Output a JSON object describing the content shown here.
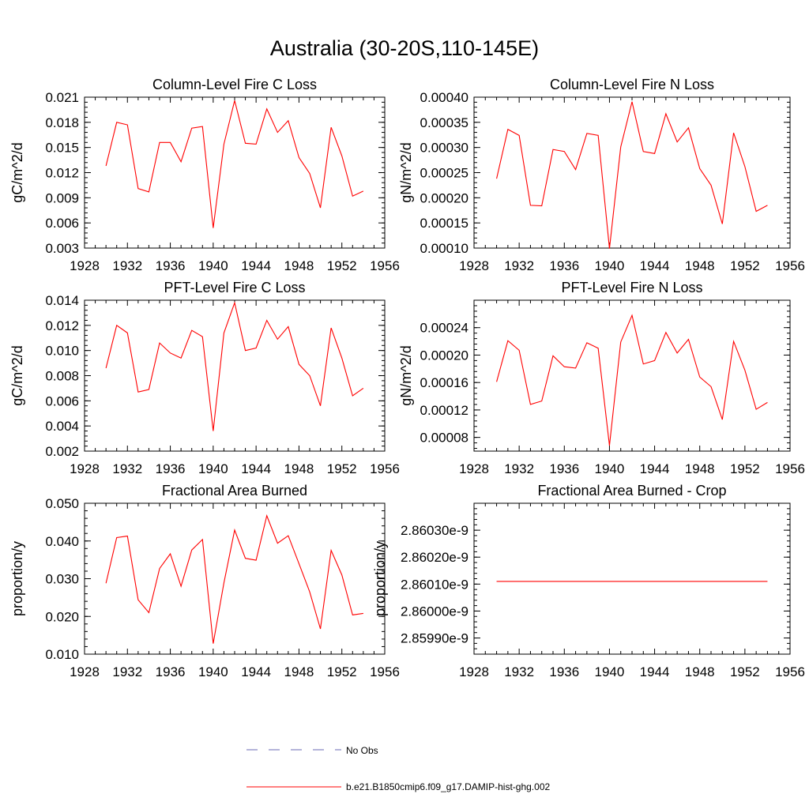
{
  "title": "Australia (30-20S,110-145E)",
  "x_ticks": [
    1928,
    1932,
    1936,
    1940,
    1944,
    1948,
    1952,
    1956
  ],
  "legend": [
    {
      "label": "No Obs",
      "color": "#6a6ab4",
      "style": "dashed"
    },
    {
      "label": "b.e21.B1850cmip6.f09_g17.DAMIP-hist-ghg.002",
      "color": "#ff0000",
      "style": "solid"
    }
  ],
  "chart_data": [
    {
      "type": "line",
      "title": "Column-Level Fire C Loss",
      "ylabel": "gC/m^2/d",
      "xlim": [
        1928,
        1956
      ],
      "ylim": [
        0.003,
        0.021
      ],
      "y_ticks": [
        "0.003",
        "0.006",
        "0.009",
        "0.012",
        "0.015",
        "0.018",
        "0.021"
      ],
      "x": [
        1930,
        1931,
        1932,
        1933,
        1934,
        1935,
        1936,
        1937,
        1938,
        1939,
        1940,
        1941,
        1942,
        1943,
        1944,
        1945,
        1946,
        1947,
        1948,
        1949,
        1950,
        1951,
        1952,
        1953,
        1954
      ],
      "series": [
        {
          "values": [
            0.0128,
            0.018,
            0.0177,
            0.0101,
            0.0097,
            0.0156,
            0.0156,
            0.0133,
            0.0173,
            0.0175,
            0.0054,
            0.0154,
            0.0206,
            0.0155,
            0.0154,
            0.0196,
            0.0168,
            0.0182,
            0.0138,
            0.0119,
            0.0078,
            0.0174,
            0.014,
            0.0092,
            0.0098
          ],
          "color": "#ff0000"
        }
      ]
    },
    {
      "type": "line",
      "title": "Column-Level Fire N Loss",
      "ylabel": "gN/m^2/d",
      "xlim": [
        1928,
        1956
      ],
      "ylim": [
        0.0001,
        0.0004
      ],
      "y_ticks": [
        "0.00010",
        "0.00015",
        "0.00020",
        "0.00025",
        "0.00030",
        "0.00035",
        "0.00040"
      ],
      "x": [
        1930,
        1931,
        1932,
        1933,
        1934,
        1935,
        1936,
        1937,
        1938,
        1939,
        1940,
        1941,
        1942,
        1943,
        1944,
        1945,
        1946,
        1947,
        1948,
        1949,
        1950,
        1951,
        1952,
        1953,
        1954
      ],
      "series": [
        {
          "values": [
            0.000238,
            0.000336,
            0.000324,
            0.000185,
            0.000184,
            0.000296,
            0.000292,
            0.000256,
            0.000328,
            0.000324,
            9.9e-05,
            0.000301,
            0.000391,
            0.000292,
            0.000288,
            0.000367,
            0.000311,
            0.000339,
            0.000258,
            0.000225,
            0.000148,
            0.000329,
            0.000262,
            0.000173,
            0.000185
          ],
          "color": "#ff0000"
        }
      ]
    },
    {
      "type": "line",
      "title": "PFT-Level Fire C Loss",
      "ylabel": "gC/m^2/d",
      "xlim": [
        1928,
        1956
      ],
      "ylim": [
        0.002,
        0.014
      ],
      "y_ticks": [
        "0.002",
        "0.004",
        "0.006",
        "0.008",
        "0.010",
        "0.012",
        "0.014"
      ],
      "x": [
        1930,
        1931,
        1932,
        1933,
        1934,
        1935,
        1936,
        1937,
        1938,
        1939,
        1940,
        1941,
        1942,
        1943,
        1944,
        1945,
        1946,
        1947,
        1948,
        1949,
        1950,
        1951,
        1952,
        1953,
        1954
      ],
      "series": [
        {
          "values": [
            0.0086,
            0.012,
            0.0114,
            0.0067,
            0.0069,
            0.0106,
            0.0098,
            0.0094,
            0.0116,
            0.0111,
            0.0036,
            0.0114,
            0.0138,
            0.01,
            0.0102,
            0.0124,
            0.0109,
            0.0119,
            0.0089,
            0.008,
            0.0056,
            0.0118,
            0.0094,
            0.0064,
            0.007
          ],
          "color": "#ff0000"
        }
      ]
    },
    {
      "type": "line",
      "title": "PFT-Level Fire N Loss",
      "ylabel": "gN/m^2/d",
      "xlim": [
        1928,
        1956
      ],
      "ylim": [
        6e-05,
        0.00028
      ],
      "y_ticks": [
        "0.00008",
        "0.00012",
        "0.00016",
        "0.00020",
        "0.00024"
      ],
      "x": [
        1930,
        1931,
        1932,
        1933,
        1934,
        1935,
        1936,
        1937,
        1938,
        1939,
        1940,
        1941,
        1942,
        1943,
        1944,
        1945,
        1946,
        1947,
        1948,
        1949,
        1950,
        1951,
        1952,
        1953,
        1954
      ],
      "series": [
        {
          "values": [
            0.000161,
            0.000221,
            0.000207,
            0.000128,
            0.000133,
            0.000199,
            0.000183,
            0.000181,
            0.000218,
            0.00021,
            6.8e-05,
            0.000219,
            0.000258,
            0.000187,
            0.000192,
            0.000233,
            0.000203,
            0.000223,
            0.000168,
            0.000154,
            0.000106,
            0.00022,
            0.000178,
            0.000121,
            0.000131
          ],
          "color": "#ff0000"
        }
      ]
    },
    {
      "type": "line",
      "title": "Fractional Area Burned",
      "ylabel": "proportion/y",
      "xlim": [
        1928,
        1956
      ],
      "ylim": [
        0.01,
        0.05
      ],
      "y_ticks": [
        "0.010",
        "0.020",
        "0.030",
        "0.040",
        "0.050"
      ],
      "x": [
        1930,
        1931,
        1932,
        1933,
        1934,
        1935,
        1936,
        1937,
        1938,
        1939,
        1940,
        1941,
        1942,
        1943,
        1944,
        1945,
        1946,
        1947,
        1948,
        1949,
        1950,
        1951,
        1952,
        1953,
        1954
      ],
      "series": [
        {
          "values": [
            0.0288,
            0.0409,
            0.0413,
            0.0244,
            0.021,
            0.0327,
            0.0366,
            0.028,
            0.0376,
            0.0404,
            0.0128,
            0.0289,
            0.0429,
            0.0354,
            0.0349,
            0.0467,
            0.0394,
            0.0414,
            0.034,
            0.0265,
            0.0167,
            0.0375,
            0.031,
            0.0204,
            0.0208
          ],
          "color": "#ff0000"
        }
      ]
    },
    {
      "type": "line",
      "title": "Fractional Area Burned - Crop",
      "ylabel": "proportion/y",
      "xlim": [
        1928,
        1956
      ],
      "ylim": [
        2.85984e-09,
        2.8604e-09
      ],
      "y_ticks": [
        "2.85990e-9",
        "2.86000e-9",
        "2.86010e-9",
        "2.86020e-9",
        "2.86030e-9"
      ],
      "x": [
        1930,
        1954
      ],
      "series": [
        {
          "values": [
            2.86011e-09,
            2.86011e-09
          ],
          "color": "#ff0000"
        }
      ]
    }
  ]
}
